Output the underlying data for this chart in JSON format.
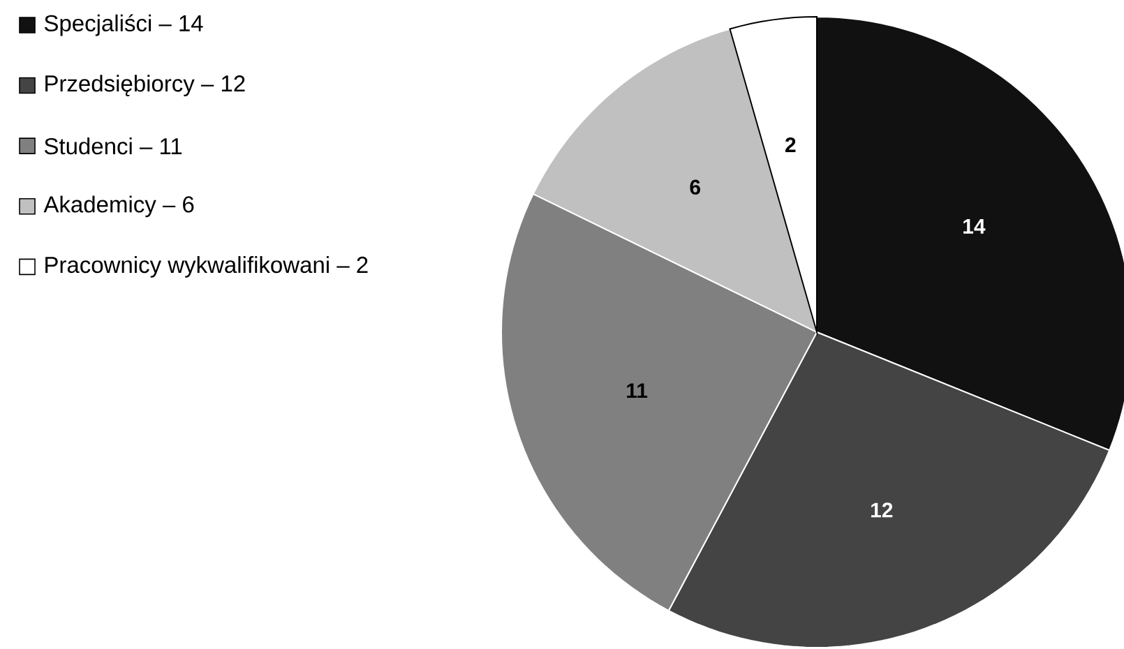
{
  "chart_data": {
    "type": "pie",
    "categories": [
      "Specjaliści – 14",
      "Przedsiębiorcy – 12",
      "Studenci – 11",
      "Akademicy – 6",
      "Pracownicy wykwalifikowani – 2"
    ],
    "values": [
      14,
      12,
      11,
      6,
      2
    ],
    "colors": [
      "#111111",
      "#444444",
      "#808080",
      "#c0c0c0",
      "#ffffff"
    ],
    "data_labels": true,
    "legend": "top left"
  }
}
